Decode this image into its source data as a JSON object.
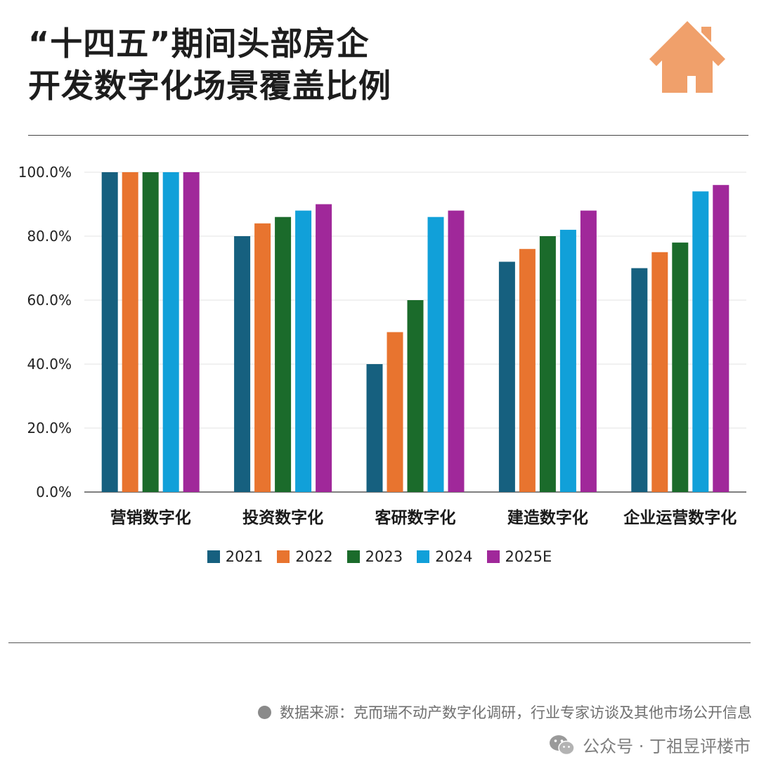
{
  "title_lines": [
    "“十四五”期间头部房企",
    "开发数字化场景覆盖比例"
  ],
  "colors": {
    "2021": "#16607f",
    "2022": "#e8742f",
    "2023": "#1b6b2b",
    "2024": "#11a0d9",
    "2025E": "#a0289a",
    "house": "#f0a06b",
    "grid": "#e3e3e3",
    "axis": "#333333"
  },
  "icons": {
    "logo": "house-icon",
    "source_bullet": "dot-icon",
    "brand": "wechat-icon"
  },
  "chart_data": {
    "type": "bar",
    "categories": [
      "营销数字化",
      "投资数字化",
      "客研数字化",
      "建造数字化",
      "企业运营数字化"
    ],
    "series": [
      {
        "name": "2021",
        "values": [
          100,
          80,
          40,
          72,
          70
        ]
      },
      {
        "name": "2022",
        "values": [
          100,
          84,
          50,
          76,
          75
        ]
      },
      {
        "name": "2023",
        "values": [
          100,
          86,
          60,
          80,
          78
        ]
      },
      {
        "name": "2024",
        "values": [
          100,
          88,
          86,
          82,
          94
        ]
      },
      {
        "name": "2025E",
        "values": [
          100,
          90,
          88,
          88,
          96
        ]
      }
    ],
    "yticks": [
      "0.0%",
      "20.0%",
      "40.0%",
      "60.0%",
      "80.0%",
      "100.0%"
    ],
    "ylim": [
      0,
      100
    ],
    "grid": true,
    "legend_position": "bottom"
  },
  "footer": {
    "source": "数据来源：克而瑞不动产数字化调研，行业专家访谈及其他市场公开信息",
    "brand": "公众号 · 丁祖昱评楼市"
  }
}
